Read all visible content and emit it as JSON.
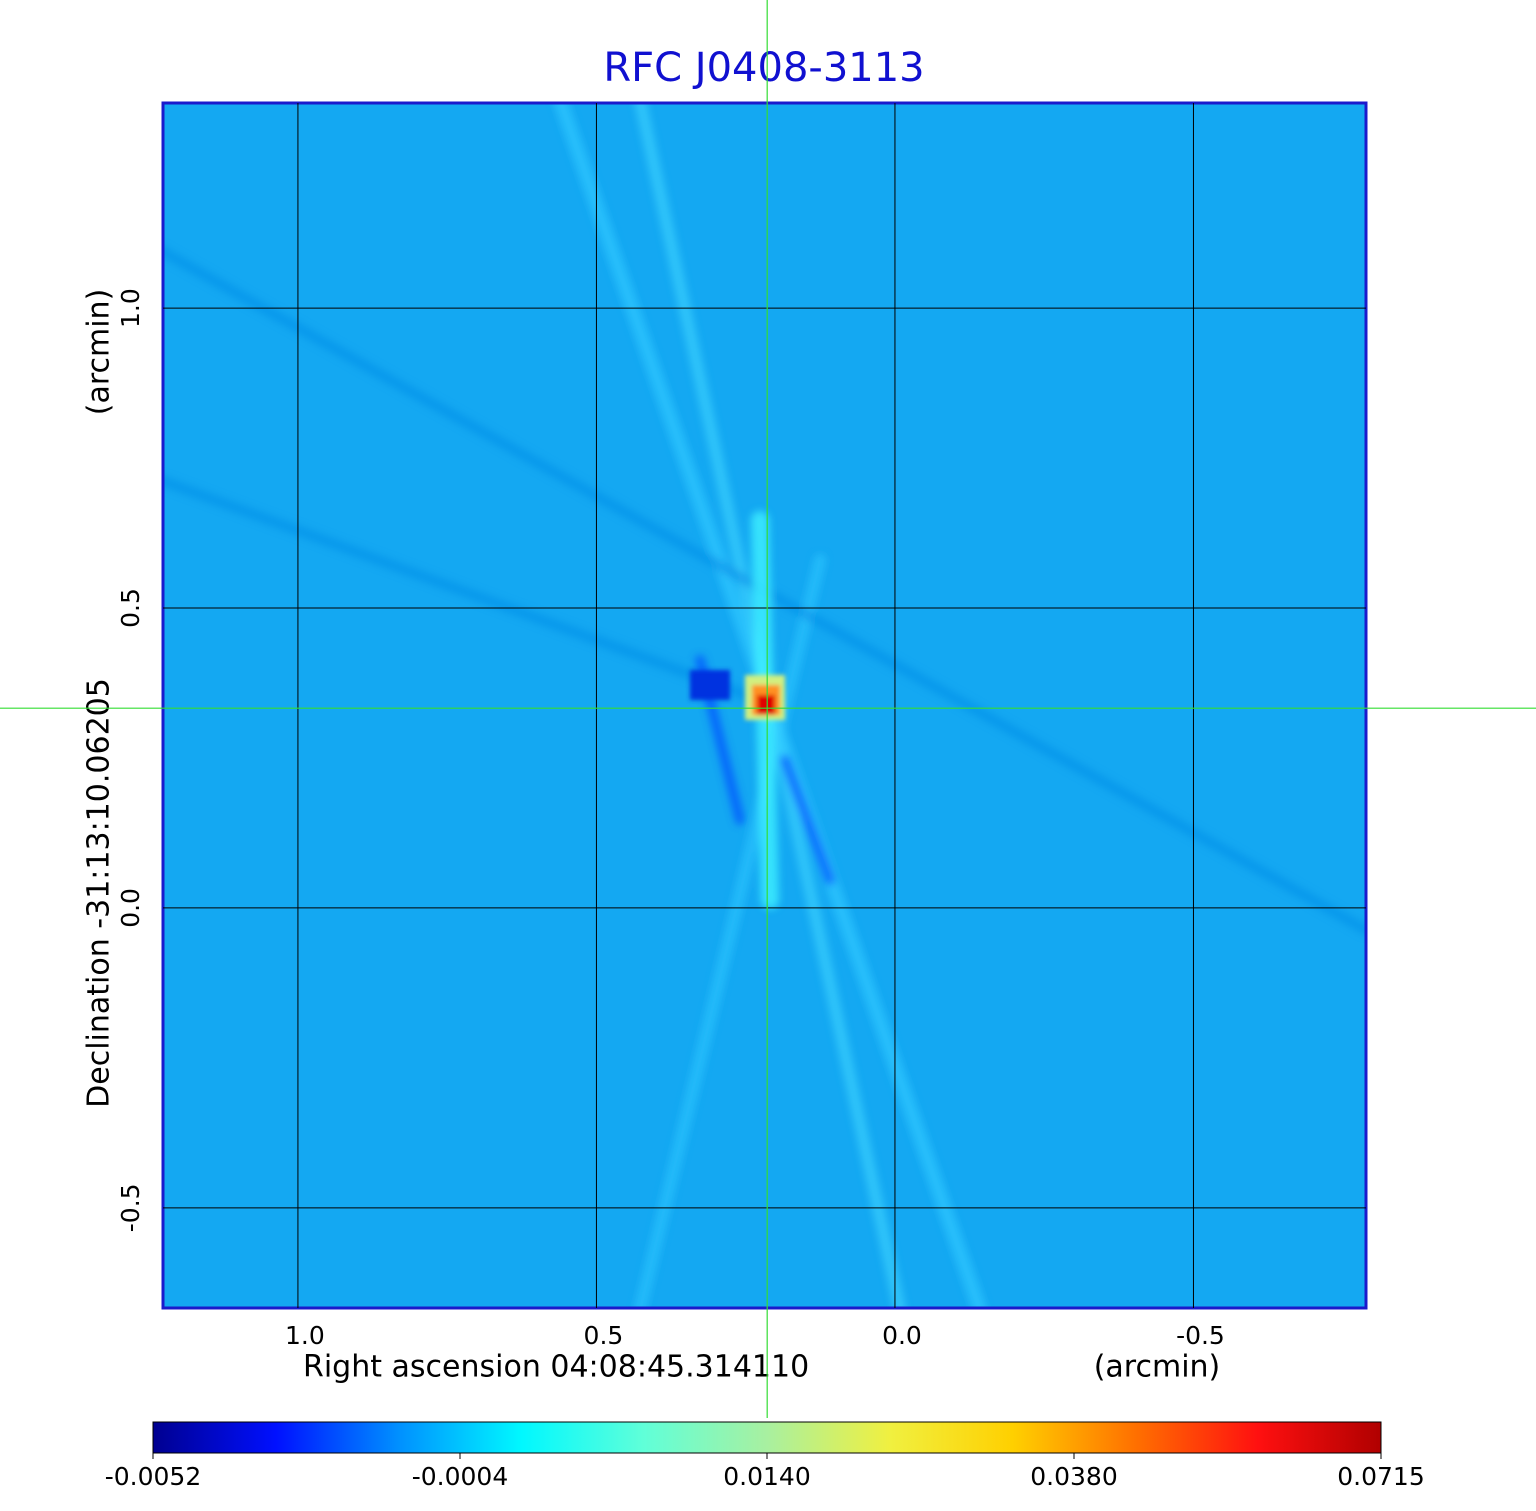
{
  "chart_data": {
    "type": "image",
    "title": "RFC J0408-3113",
    "title_color": "#1010d0",
    "x_label": "Right ascension  04:08:45.314110",
    "x_unit": "(arcmin)",
    "y_label": "Declination  -31:13:10.06205",
    "y_unit": "(arcmin)",
    "xlim": [
      1.226,
      -0.789
    ],
    "ylim": [
      -0.667,
      1.342
    ],
    "xticks": [
      {
        "value": 1,
        "label": "1.0"
      },
      0.5,
      {
        "value": 0,
        "label": "0.0"
      },
      -0.5
    ],
    "yticks": [
      -0.5,
      {
        "value": 0,
        "label": "0.0"
      },
      0.5,
      {
        "value": 1,
        "label": "1.0"
      }
    ],
    "grid": true,
    "crosshair": {
      "x": 0.214,
      "y": 0.333,
      "color": "#33dd33"
    },
    "colorbar": {
      "ticks": [
        -0.0052,
        -0.0004,
        {
          "value": 0.014,
          "label": "0.0140"
        },
        {
          "value": 0.038,
          "label": "0.0380"
        },
        0.0715
      ],
      "colors": [
        "#000090",
        "#0010ff",
        "#0090ff",
        "#00f8ff",
        "#60ffd8",
        "#a8f0a0",
        "#f0f040",
        "#ffd000",
        "#ff7000",
        "#ff1010",
        "#b00000"
      ]
    }
  }
}
